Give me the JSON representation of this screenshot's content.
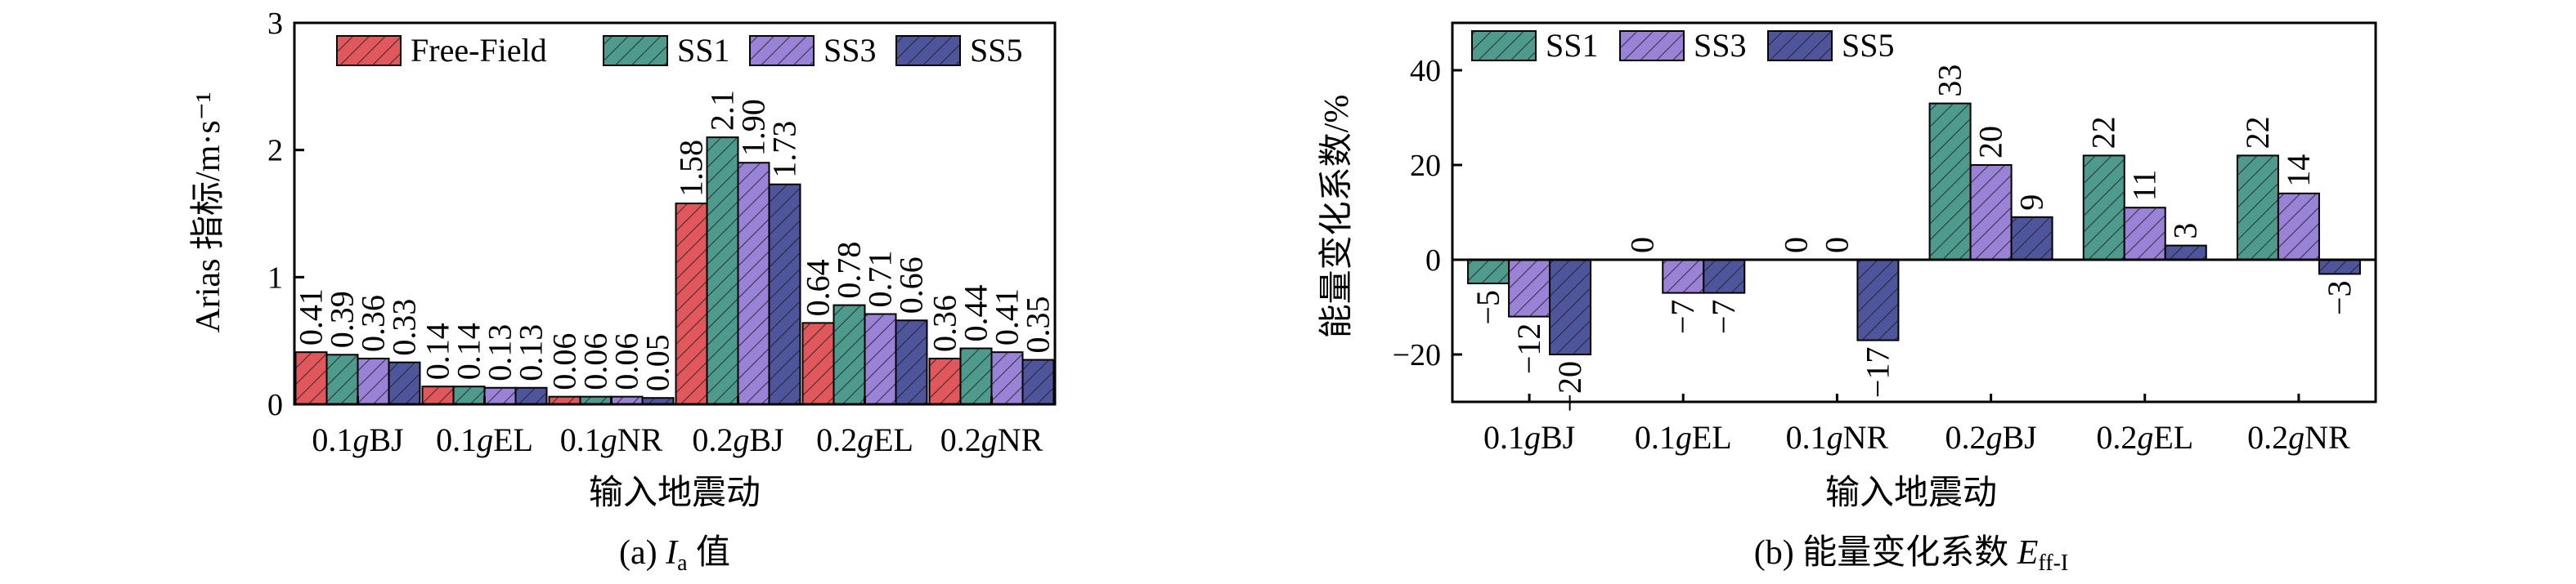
{
  "colors": {
    "Free-Field": "#e0575c",
    "SS1": "#4e9a8d",
    "SS3": "#9a82d6",
    "SS5": "#4f559b"
  },
  "chart_data": [
    {
      "type": "bar",
      "caption_prefix": "(a) ",
      "caption_italic": "I",
      "caption_sub": "a",
      "caption_suffix": " 值",
      "categories": [
        "0.1gBJ",
        "0.1gEL",
        "0.1gNR",
        "0.2gBJ",
        "0.2gEL",
        "0.2gNR"
      ],
      "series": [
        {
          "name": "Free-Field",
          "values": [
            0.41,
            0.14,
            0.06,
            1.58,
            0.64,
            0.36
          ],
          "labels": [
            "0.41",
            "0.14",
            "0.06",
            "1.58",
            "0.64",
            "0.36"
          ]
        },
        {
          "name": "SS1",
          "values": [
            0.39,
            0.14,
            0.06,
            2.1,
            0.78,
            0.44
          ],
          "labels": [
            "0.39",
            "0.14",
            "0.06",
            "2.1",
            "0.78",
            "0.44"
          ]
        },
        {
          "name": "SS3",
          "values": [
            0.36,
            0.13,
            0.06,
            1.9,
            0.71,
            0.41
          ],
          "labels": [
            "0.36",
            "0.13",
            "0.06",
            "1.90",
            "0.71",
            "0.41"
          ]
        },
        {
          "name": "SS5",
          "values": [
            0.33,
            0.13,
            0.05,
            1.73,
            0.66,
            0.35
          ],
          "labels": [
            "0.33",
            "0.13",
            "0.05",
            "1.73",
            "0.66",
            "0.35"
          ]
        }
      ],
      "xlabel": "输入地震动",
      "ylabel": "Arias 指标/m·s⁻¹",
      "ylim": [
        0,
        3
      ],
      "yticks": [
        0,
        1,
        2,
        3
      ],
      "legend": "top, horizontal",
      "grid": false
    },
    {
      "type": "bar",
      "caption_prefix": "(b) 能量变化系数 ",
      "caption_italic": "E",
      "caption_sub": "ff-I",
      "caption_suffix": "",
      "categories": [
        "0.1gBJ",
        "0.1gEL",
        "0.1gNR",
        "0.2gBJ",
        "0.2gEL",
        "0.2gNR"
      ],
      "series": [
        {
          "name": "SS1",
          "values": [
            -5,
            0,
            0,
            33,
            22,
            22
          ],
          "labels": [
            "−5",
            "0",
            "0",
            "33",
            "22",
            "22"
          ]
        },
        {
          "name": "SS3",
          "values": [
            -12,
            -7,
            0,
            20,
            11,
            14
          ],
          "labels": [
            "−12",
            "−7",
            "0",
            "20",
            "11",
            "14"
          ]
        },
        {
          "name": "SS5",
          "values": [
            -20,
            -7,
            -17,
            9,
            3,
            -3
          ],
          "labels": [
            "−20",
            "−7",
            "−17",
            "9",
            "3",
            "−3"
          ]
        }
      ],
      "xlabel": "输入地震动",
      "ylabel": "能量变化系数/%",
      "ylim": [
        -30,
        50
      ],
      "yticks": [
        -20,
        0,
        20,
        40
      ],
      "legend": "top-left, horizontal",
      "grid": false
    }
  ]
}
